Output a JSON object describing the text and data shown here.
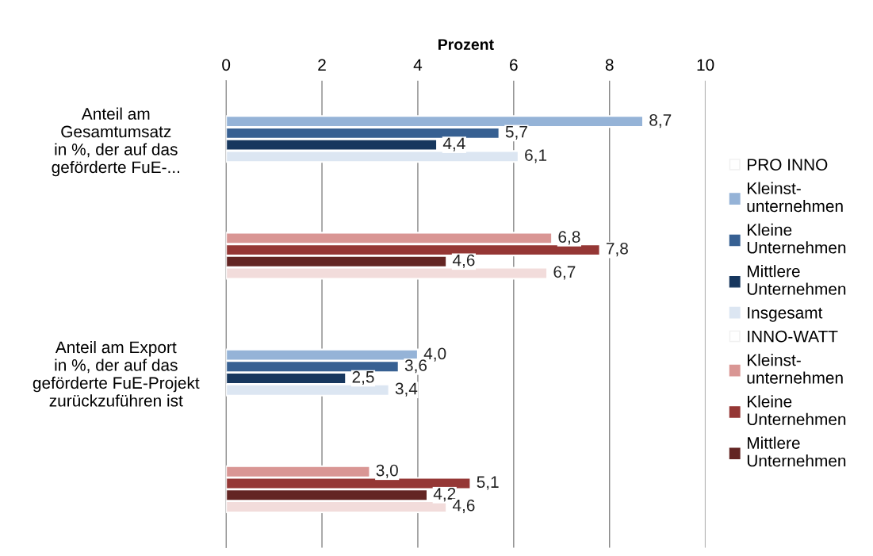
{
  "chart_data": {
    "type": "bar",
    "orientation": "horizontal",
    "xlabel": "Prozent",
    "categories": [
      "Anteil am\nGesamtumsatz\nin %, der auf das\ngeförderte FuE-...",
      null,
      "Anteil am Export\nin %, der auf das\ngeförderte FuE-Projekt\nzurückzuführen ist",
      null
    ],
    "series": [
      {
        "name": "PRO INNO",
        "color": "#ffffff",
        "values": [
          null,
          null,
          null,
          null
        ]
      },
      {
        "name": "Kleinst-\nunternehmen",
        "color": "#95b3d7",
        "values": [
          8.7,
          null,
          4.0,
          null
        ],
        "value_labels": [
          "8,7",
          null,
          "4,0",
          null
        ]
      },
      {
        "name": "Kleine\nUnternehmen",
        "color": "#376092",
        "values": [
          5.7,
          null,
          3.6,
          null
        ],
        "value_labels": [
          "5,7",
          null,
          "3,6",
          null
        ]
      },
      {
        "name": "Mittlere\nUnternehmen",
        "color": "#17375e",
        "values": [
          4.4,
          null,
          2.5,
          null
        ],
        "value_labels": [
          "4,4",
          null,
          "2,5",
          null
        ]
      },
      {
        "name": "Insgesamt",
        "color": "#dce6f2",
        "values": [
          6.1,
          null,
          3.4,
          null
        ],
        "value_labels": [
          "6,1",
          null,
          "3,4",
          null
        ]
      },
      {
        "name": "INNO-WATT",
        "color": "#ffffff",
        "values": [
          null,
          null,
          null,
          null
        ]
      },
      {
        "name": "Kleinst-\nunternehmen",
        "color": "#d99694",
        "values": [
          null,
          6.8,
          null,
          3.0
        ],
        "value_labels": [
          null,
          "6,8",
          null,
          "3,0"
        ]
      },
      {
        "name": "Kleine\nUnternehmen",
        "color": "#953735",
        "values": [
          null,
          7.8,
          null,
          5.1
        ],
        "value_labels": [
          null,
          "7,8",
          null,
          "5,1"
        ]
      },
      {
        "name": "Mittlere\nUnternehmen",
        "color": "#632523",
        "values": [
          null,
          4.6,
          null,
          4.2
        ],
        "value_labels": [
          null,
          "4,6",
          null,
          "4,2"
        ]
      },
      {
        "color": "#f2dcdb",
        "values": [
          null,
          6.7,
          null,
          4.6
        ],
        "value_labels": [
          null,
          "6,7",
          null,
          "4,6"
        ]
      }
    ],
    "xlim": [
      0,
      10
    ],
    "xticks": [
      0,
      2,
      4,
      6,
      8,
      10
    ],
    "grid": "x",
    "legend": "right"
  }
}
